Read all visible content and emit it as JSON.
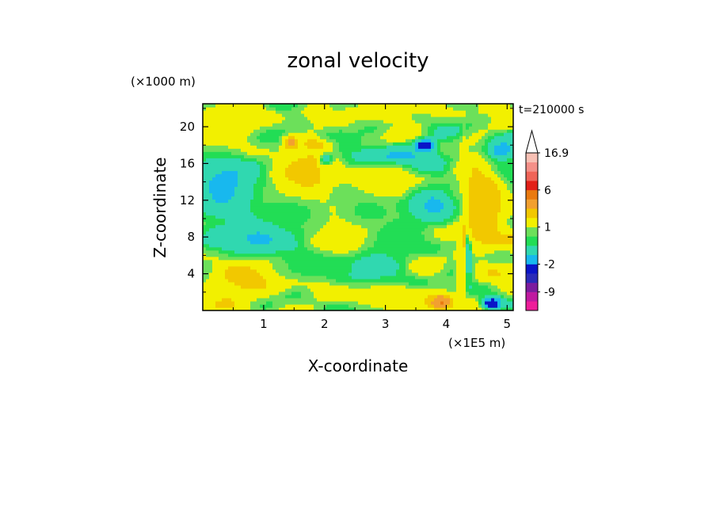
{
  "chart_data": {
    "type": "heatmap",
    "title": "zonal velocity",
    "xlabel": "X-coordinate",
    "ylabel": "Z-coordinate",
    "x_unit": "(×1E5 m)",
    "y_unit": "(×1000 m)",
    "time_label": "t=210000 s",
    "xlim": [
      0,
      5.1
    ],
    "ylim": [
      0,
      22.5
    ],
    "x_ticks": [
      "1",
      "2",
      "3",
      "4",
      "5"
    ],
    "y_ticks": [
      "4",
      "8",
      "12",
      "16",
      "20"
    ],
    "x_tick_values": [
      1,
      2,
      3,
      4,
      5
    ],
    "y_tick_values": [
      4,
      8,
      12,
      16,
      20
    ],
    "colorbar": {
      "labels": [
        "16.9",
        "6",
        "1",
        "-2",
        "-9"
      ],
      "label_values": [
        16.9,
        6,
        1,
        -2,
        -9
      ],
      "extend": "max",
      "levels": [
        {
          "min": -15,
          "max": -12,
          "color": "#ee1e9a"
        },
        {
          "min": -12,
          "max": -9,
          "color": "#c01aa0"
        },
        {
          "min": -9,
          "max": -6,
          "color": "#7c1c9e"
        },
        {
          "min": -6,
          "max": -4,
          "color": "#2a2ab8"
        },
        {
          "min": -4,
          "max": -2,
          "color": "#0a14c8"
        },
        {
          "min": -2,
          "max": -1,
          "color": "#18b8ee"
        },
        {
          "min": -1,
          "max": 0,
          "color": "#30d8b0"
        },
        {
          "min": 0,
          "max": 0.5,
          "color": "#22dd55"
        },
        {
          "min": 0.5,
          "max": 1,
          "color": "#6ce05a"
        },
        {
          "min": 1,
          "max": 2,
          "color": "#f2f000"
        },
        {
          "min": 2,
          "max": 3,
          "color": "#f2c800"
        },
        {
          "min": 3,
          "max": 4.5,
          "color": "#f2a030"
        },
        {
          "min": 4.5,
          "max": 6,
          "color": "#ea7a10"
        },
        {
          "min": 6,
          "max": 9,
          "color": "#e22018"
        },
        {
          "min": 9,
          "max": 12,
          "color": "#f06458"
        },
        {
          "min": 12,
          "max": 14.5,
          "color": "#f59088"
        },
        {
          "min": 14.5,
          "max": 16.9,
          "color": "#f8c0b4"
        }
      ]
    },
    "features": [
      {
        "x": 4.32,
        "z": 12.0,
        "value": -3.5,
        "sx": 0.07,
        "sz": 1.5
      },
      {
        "x": 4.35,
        "z": 7.0,
        "value": -3.5,
        "sx": 0.05,
        "sz": 2.2
      },
      {
        "x": 4.52,
        "z": 11.5,
        "value": 5.5,
        "sx": 0.18,
        "sz": 2.2
      },
      {
        "x": 4.62,
        "z": 10.5,
        "value": 2.5,
        "sx": 0.3,
        "sz": 3.2
      },
      {
        "x": 4.28,
        "z": 9.0,
        "value": 2.5,
        "sx": 0.03,
        "sz": 6.0
      },
      {
        "x": 4.25,
        "z": 3.0,
        "value": 1.8,
        "sx": 0.06,
        "sz": 2.5
      },
      {
        "x": 1.92,
        "z": 18.4,
        "value": 5.5,
        "sx": 0.18,
        "sz": 0.6
      },
      {
        "x": 1.45,
        "z": 18.3,
        "value": 4.5,
        "sx": 0.08,
        "sz": 0.5
      },
      {
        "x": 3.65,
        "z": 18.0,
        "value": -3.5,
        "sx": 0.13,
        "sz": 0.5
      },
      {
        "x": 2.02,
        "z": 16.4,
        "value": -3.5,
        "sx": 0.08,
        "sz": 0.5
      },
      {
        "x": 3.9,
        "z": 1.0,
        "value": 5.5,
        "sx": 0.15,
        "sz": 0.6
      },
      {
        "x": 4.75,
        "z": 0.8,
        "value": -3.5,
        "sx": 0.12,
        "sz": 0.5
      },
      {
        "x": 0.35,
        "z": 13.5,
        "value": -1.5,
        "sx": 0.4,
        "sz": 2.5
      },
      {
        "x": 0.95,
        "z": 8.0,
        "value": -1.5,
        "sx": 0.45,
        "sz": 1.5
      },
      {
        "x": 2.5,
        "z": 5.5,
        "value": -1.5,
        "sx": 0.5,
        "sz": 1.5
      },
      {
        "x": 3.2,
        "z": 16.8,
        "value": -1.5,
        "sx": 0.4,
        "sz": 0.8
      },
      {
        "x": 3.75,
        "z": 11.5,
        "value": -1.5,
        "sx": 0.35,
        "sz": 1.5
      },
      {
        "x": 4.9,
        "z": 17.5,
        "value": -1.5,
        "sx": 0.2,
        "sz": 1.0
      },
      {
        "x": 0.8,
        "z": 3.5,
        "value": 2.5,
        "sx": 0.5,
        "sz": 1.5
      },
      {
        "x": 1.7,
        "z": 14.5,
        "value": 2.5,
        "sx": 0.4,
        "sz": 2.0
      },
      {
        "x": 2.3,
        "z": 8.5,
        "value": 2.0,
        "sx": 0.4,
        "sz": 2.5
      },
      {
        "x": 3.0,
        "z": 13.5,
        "value": 2.0,
        "sx": 0.35,
        "sz": 1.5
      },
      {
        "x": 0.4,
        "z": 20.0,
        "value": 1.5,
        "sx": 0.5,
        "sz": 1.5
      },
      {
        "x": 2.8,
        "z": 21.5,
        "value": 1.5,
        "sx": 0.6,
        "sz": 1.0
      },
      {
        "x": 3.0,
        "z": 1.5,
        "value": 1.8,
        "sx": 0.6,
        "sz": 0.8
      },
      {
        "x": 1.3,
        "z": 11.0,
        "value": 0.3,
        "sx": 0.5,
        "sz": 1.5
      },
      {
        "x": 2.7,
        "z": 11.0,
        "value": 0.3,
        "sx": 0.4,
        "sz": 1.5
      },
      {
        "x": 1.8,
        "z": 4.5,
        "value": 0.3,
        "sx": 0.5,
        "sz": 1.0
      },
      {
        "x": 3.3,
        "z": 8.0,
        "value": 0.3,
        "sx": 0.35,
        "sz": 1.5
      },
      {
        "x": 2.2,
        "z": 19.0,
        "value": 0.3,
        "sx": 0.4,
        "sz": 1.0
      }
    ],
    "grid": false
  }
}
